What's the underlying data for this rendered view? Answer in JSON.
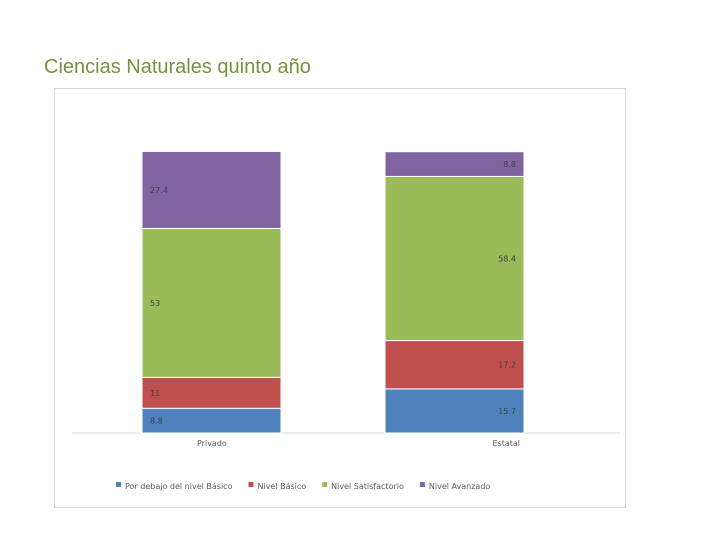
{
  "slide": {
    "title": "Ciencias Naturales quinto año"
  },
  "chart_data": {
    "type": "bar",
    "stacked": true,
    "categories": [
      "Privado",
      "Estatal"
    ],
    "series": [
      {
        "name": "Por debajo del nivel Básico",
        "values": [
          8.8,
          15.7
        ],
        "labels": [
          "8.8",
          "15.7"
        ],
        "color": "#4f81bd"
      },
      {
        "name": "Nivel Básico",
        "values": [
          11,
          17.2
        ],
        "labels": [
          "11",
          "17.2"
        ],
        "color": "#c0504d"
      },
      {
        "name": "Nivel Satisfactorio",
        "values": [
          53,
          58.4
        ],
        "labels": [
          "53",
          "58.4"
        ],
        "color": "#9bbb59"
      },
      {
        "name": "Nivel Avanzado",
        "values": [
          27.4,
          8.8
        ],
        "labels": [
          "27.4",
          "8.8"
        ],
        "color": "#8064a2"
      }
    ],
    "ylim": [
      0,
      100
    ],
    "grid": false,
    "legend_position": "bottom"
  }
}
